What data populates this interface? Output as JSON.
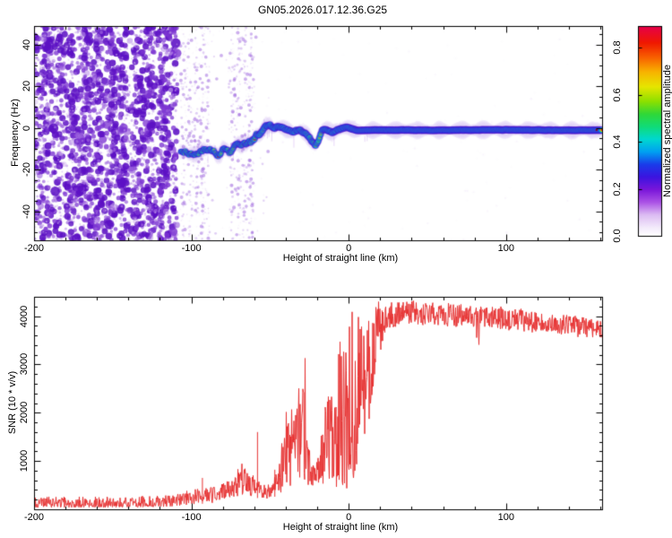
{
  "title": "GN05.2026.017.12.36.G25",
  "figure_bg": "#ffffff",
  "chart_data": [
    {
      "type": "heatmap",
      "name": "doppler-spectrogram",
      "xlabel": "Height of straight line (km)",
      "ylabel": "Frequency (Hz)",
      "xlim": [
        -200,
        161
      ],
      "ylim": [
        -54,
        49
      ],
      "xticks": [
        -200,
        -100,
        0,
        100
      ],
      "xtick_minor_step": 20,
      "yticks": [
        -40,
        -20,
        0,
        20,
        40
      ],
      "ytick_minor_step": 5,
      "grid": false,
      "colorbar": {
        "label": "Normalized spectral amplitude",
        "ticks": [
          0,
          0.2,
          0.4,
          0.6,
          0.8
        ],
        "tick_labels": [
          "0.0",
          "0.2",
          "0.4",
          "0.6",
          "0.8"
        ],
        "top_value": 0.892,
        "stops": [
          [
            0,
            "#ffffff"
          ],
          [
            0.04,
            "#f3eafb"
          ],
          [
            0.1,
            "#dcbcf3"
          ],
          [
            0.16,
            "#ab52e6"
          ],
          [
            0.22,
            "#7a16da"
          ],
          [
            0.28,
            "#3c14e0"
          ],
          [
            0.34,
            "#1a3cea"
          ],
          [
            0.4,
            "#00a0f2"
          ],
          [
            0.46,
            "#00d8d0"
          ],
          [
            0.52,
            "#10dc78"
          ],
          [
            0.58,
            "#30d838"
          ],
          [
            0.64,
            "#8ce000"
          ],
          [
            0.71,
            "#e6e600"
          ],
          [
            0.78,
            "#f8b400"
          ],
          [
            0.85,
            "#f86000"
          ],
          [
            0.92,
            "#f01800"
          ],
          [
            1,
            "#e6004c"
          ]
        ]
      },
      "signal_track": [
        [
          -107,
          -12
        ],
        [
          -103,
          -11.5
        ],
        [
          -99,
          -13
        ],
        [
          -95,
          -12
        ],
        [
          -91,
          -10
        ],
        [
          -87,
          -11
        ],
        [
          -83,
          -12
        ],
        [
          -79,
          -10
        ],
        [
          -75,
          -11
        ],
        [
          -71,
          -8
        ],
        [
          -68,
          -7
        ],
        [
          -65,
          -8
        ],
        [
          -62,
          -6
        ],
        [
          -59,
          -4
        ],
        [
          -56,
          -1.5
        ],
        [
          -53,
          0.5
        ],
        [
          -50,
          1
        ],
        [
          -47,
          0.2
        ],
        [
          -44,
          0.8
        ],
        [
          -41,
          -0.5
        ],
        [
          -38,
          -1.5
        ],
        [
          -35,
          -2
        ],
        [
          -32,
          -1
        ],
        [
          -29,
          -1.5
        ],
        [
          -26,
          -3
        ],
        [
          -23,
          -7
        ],
        [
          -21,
          -9
        ],
        [
          -19,
          -5
        ],
        [
          -17,
          -1.5
        ],
        [
          -14,
          -1
        ],
        [
          -11,
          -2
        ],
        [
          -8,
          -1.5
        ],
        [
          -5,
          -0.5
        ],
        [
          -2,
          0.3
        ],
        [
          0,
          0.4
        ],
        [
          2,
          -0.5
        ],
        [
          5,
          -1.2
        ],
        [
          20,
          -1
        ],
        [
          60,
          -1.1
        ],
        [
          100,
          -0.9
        ],
        [
          140,
          -1.1
        ],
        [
          161,
          -1
        ]
      ],
      "track_intensity": [
        [
          -107,
          0.5
        ],
        [
          -95,
          0.55
        ],
        [
          -85,
          0.6
        ],
        [
          -75,
          0.65
        ],
        [
          -65,
          0.72
        ],
        [
          -58,
          0.8
        ],
        [
          -52,
          0.88
        ],
        [
          -45,
          0.9
        ],
        [
          -35,
          0.88
        ],
        [
          -27,
          0.85
        ],
        [
          -22,
          0.78
        ],
        [
          -18,
          0.85
        ],
        [
          -12,
          0.92
        ],
        [
          -4,
          0.97
        ],
        [
          0,
          1
        ],
        [
          161,
          1
        ]
      ],
      "noise_regions": [
        {
          "km_range": [
            -200,
            -109
          ],
          "style": "dense-speckle",
          "count": 4200
        },
        {
          "km_range": [
            -109,
            -50
          ],
          "style": "banded-speckle",
          "count": 820,
          "band_centers_km": [
            -105,
            -101,
            -97,
            -93,
            -90,
            -74,
            -70,
            -66,
            -62
          ]
        },
        {
          "km_range": [
            -50,
            161
          ],
          "style": "faint-speckle",
          "count": 120
        }
      ],
      "noise_palette": [
        "#e7d7f7",
        "#d4b9f0",
        "#bb93e8",
        "#9c63dd",
        "#7c35d2",
        "#5c10c4"
      ],
      "track_colors": {
        "halo": "#8a30d8",
        "purple": "#5a10c8",
        "blue": "#2730e2",
        "cyan": "#00cdee",
        "green": "#2edd4d",
        "yellow": "#eeea00",
        "orange": "#ff8800",
        "red": "#ea1e1e",
        "dark_end_dot": "#8a0505"
      }
    },
    {
      "type": "line",
      "name": "snr-profile",
      "xlabel": "Height of straight line (km)",
      "ylabel": "SNR (10 * v/v)",
      "xlim": [
        -200,
        161
      ],
      "ylim": [
        0,
        4400
      ],
      "xticks": [
        -200,
        -100,
        0,
        100
      ],
      "xtick_minor_step": 20,
      "yticks": [
        1000,
        2000,
        3000,
        4000
      ],
      "ytick_minor_step": 200,
      "grid": false,
      "line_color": "#e73232",
      "envelope": [
        [
          -200,
          40,
          260
        ],
        [
          -170,
          40,
          265
        ],
        [
          -140,
          45,
          270
        ],
        [
          -120,
          50,
          285
        ],
        [
          -112,
          60,
          300
        ],
        [
          -105,
          80,
          360
        ],
        [
          -99,
          100,
          420
        ],
        [
          -95,
          110,
          430
        ],
        [
          -91,
          120,
          440
        ],
        [
          -87,
          130,
          470
        ],
        [
          -83,
          150,
          500
        ],
        [
          -79,
          180,
          560
        ],
        [
          -75,
          220,
          680
        ],
        [
          -71,
          260,
          850
        ],
        [
          -68,
          300,
          950
        ],
        [
          -65,
          280,
          860
        ],
        [
          -62,
          260,
          760
        ],
        [
          -59,
          240,
          640
        ],
        [
          -56,
          220,
          560
        ],
        [
          -53,
          210,
          500
        ],
        [
          -50,
          220,
          540
        ],
        [
          -47,
          260,
          700
        ],
        [
          -44,
          320,
          1050
        ],
        [
          -42,
          350,
          1550
        ],
        [
          -40,
          330,
          2050
        ],
        [
          -38,
          350,
          1800
        ],
        [
          -36,
          370,
          2450
        ],
        [
          -34,
          350,
          2100
        ],
        [
          -32,
          340,
          2750
        ],
        [
          -30,
          360,
          2400
        ],
        [
          -28,
          340,
          3450
        ],
        [
          -26,
          440,
          1500
        ],
        [
          -24,
          480,
          1000
        ],
        [
          -22,
          500,
          950
        ],
        [
          -20,
          520,
          1000
        ],
        [
          -18,
          480,
          1450
        ],
        [
          -15,
          460,
          2200
        ],
        [
          -12,
          420,
          2650
        ],
        [
          -9,
          380,
          3200
        ],
        [
          -6,
          350,
          3500
        ],
        [
          -3,
          330,
          3900
        ],
        [
          0,
          380,
          4050
        ],
        [
          3,
          650,
          4150
        ],
        [
          6,
          950,
          4250
        ],
        [
          9,
          1350,
          4350
        ],
        [
          12,
          1650,
          4300
        ],
        [
          15,
          2250,
          4350
        ],
        [
          18,
          2850,
          4300
        ],
        [
          20,
          3250,
          4300
        ],
        [
          22,
          3550,
          4280
        ],
        [
          26,
          3720,
          4300
        ],
        [
          32,
          3800,
          4320
        ],
        [
          40,
          3830,
          4350
        ],
        [
          50,
          3810,
          4300
        ],
        [
          60,
          3790,
          4280
        ],
        [
          72,
          3770,
          4260
        ],
        [
          84,
          3750,
          4230
        ],
        [
          96,
          3720,
          4200
        ],
        [
          108,
          3690,
          4160
        ],
        [
          120,
          3650,
          4110
        ],
        [
          132,
          3610,
          4060
        ],
        [
          144,
          3570,
          4010
        ],
        [
          154,
          3540,
          3960
        ],
        [
          161,
          3520,
          3930
        ]
      ],
      "spikes": [
        [
          -93,
          650
        ],
        [
          -58,
          1600
        ],
        [
          -47,
          820
        ]
      ]
    }
  ]
}
